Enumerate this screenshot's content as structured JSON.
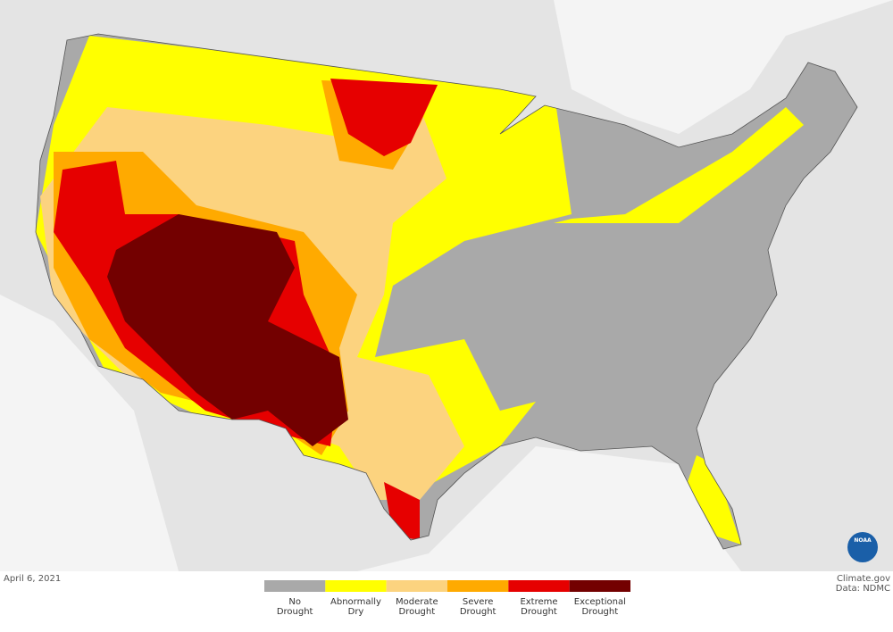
{
  "date": "April 6, 2021",
  "legend": {
    "categories": [
      {
        "label": [
          "No",
          "Drought"
        ],
        "color": "#a9a9a9"
      },
      {
        "label": [
          "Abnormally",
          "Dry"
        ],
        "color": "#ffff00"
      },
      {
        "label": [
          "Moderate",
          "Drought"
        ],
        "color": "#fcd37f"
      },
      {
        "label": [
          "Severe",
          "Drought"
        ],
        "color": "#ffaa00"
      },
      {
        "label": [
          "Extreme",
          "Drought"
        ],
        "color": "#e60000"
      },
      {
        "label": [
          "Exceptional",
          "Drought"
        ],
        "color": "#730000"
      }
    ]
  },
  "credit": {
    "source": "Climate.gov",
    "data": "Data: NDMC"
  },
  "logo": "NOAA"
}
